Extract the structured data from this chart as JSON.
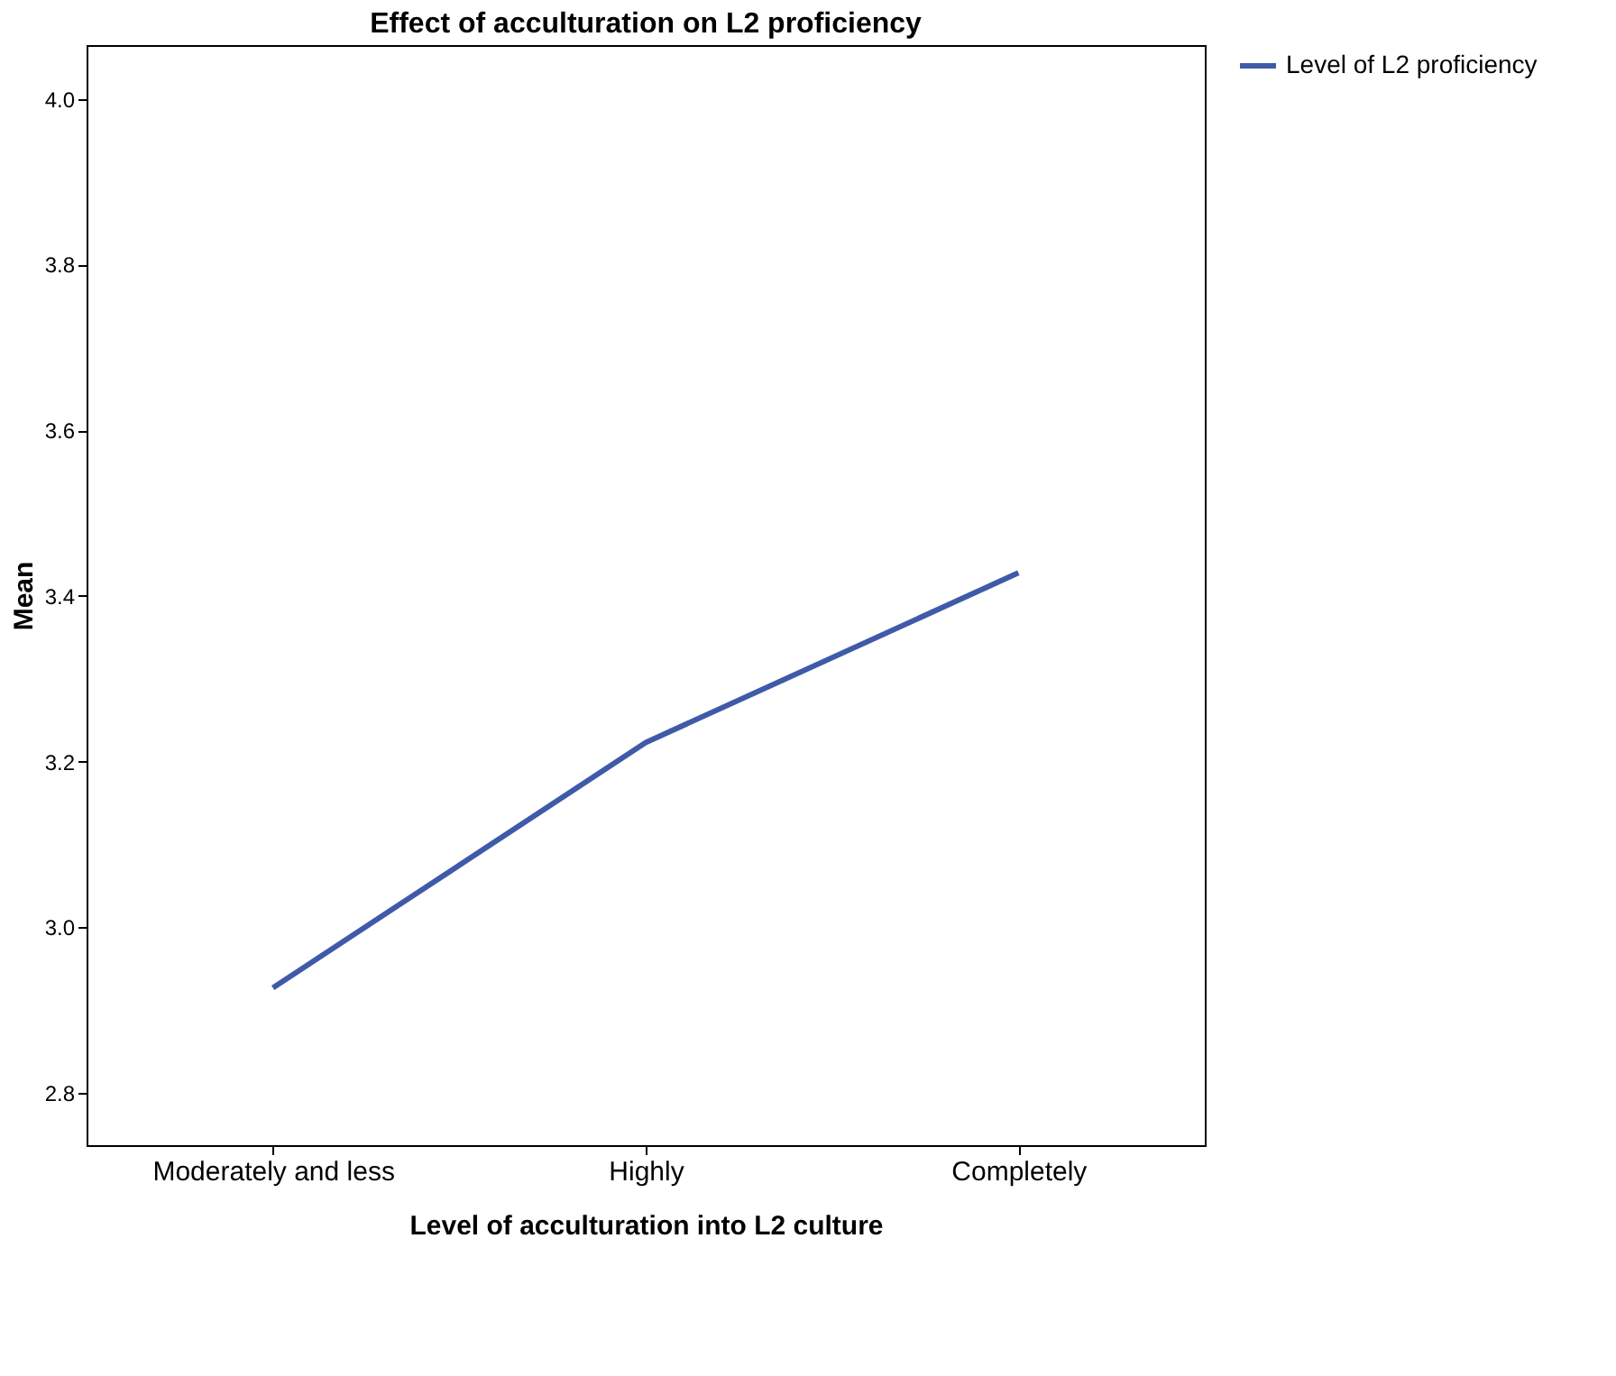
{
  "chart_data": {
    "type": "line",
    "title": "Effect of acculturation on L2 proficiency",
    "xlabel": "Level of acculturation into L2 culture",
    "ylabel": "Mean",
    "categories": [
      "Moderately and less",
      "Highly",
      "Completely"
    ],
    "series": [
      {
        "name": "Level of L2 proficiency",
        "color": "#3f5aa8",
        "values": [
          2.927,
          3.223,
          3.428
        ]
      }
    ],
    "ylim": [
      2.737,
      4.065
    ],
    "yticks": [
      {
        "value": 2.8,
        "label": "2.8"
      },
      {
        "value": 3.0,
        "label": "3.0"
      },
      {
        "value": 3.2,
        "label": "3.2"
      },
      {
        "value": 3.4,
        "label": "3.4"
      },
      {
        "value": 3.6,
        "label": "3.6"
      },
      {
        "value": 3.8,
        "label": "3.8"
      },
      {
        "value": 4.0,
        "label": "4.0"
      }
    ],
    "grid": false,
    "legend": "top right",
    "marker": "none",
    "line_style": "solid"
  }
}
